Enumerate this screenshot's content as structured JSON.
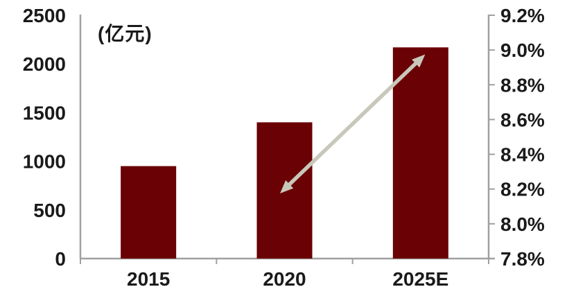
{
  "colors": {
    "bar": "#6a0104",
    "arrow_line": "#c8c7ba",
    "axis": "#a0a0a0",
    "text": "#1a1a1a",
    "background": "#ffffff"
  },
  "chart_data": {
    "type": "bar",
    "title": "",
    "categories": [
      "2015",
      "2020",
      "2025E"
    ],
    "series": [
      {
        "name": "bar-series",
        "type": "bar",
        "axis": "left",
        "values": [
          950,
          1400,
          2170
        ]
      },
      {
        "name": "arrow-series",
        "type": "arrow-line",
        "axis": "right",
        "x": [
          "2020",
          "2025E"
        ],
        "values": [
          8.2,
          8.95
        ]
      }
    ],
    "left_axis": {
      "unit_label": "(亿元)",
      "min": 0,
      "max": 2500,
      "tick_labels": [
        "2500",
        "2000",
        "1500",
        "1000",
        "500",
        "0"
      ]
    },
    "right_axis": {
      "min": 7.8,
      "max": 9.2,
      "tick_labels": [
        "9.2%",
        "9.0%",
        "8.8%",
        "8.6%",
        "8.4%",
        "8.2%",
        "8.0%",
        "7.8%"
      ]
    },
    "grid": false,
    "legend": "none"
  }
}
